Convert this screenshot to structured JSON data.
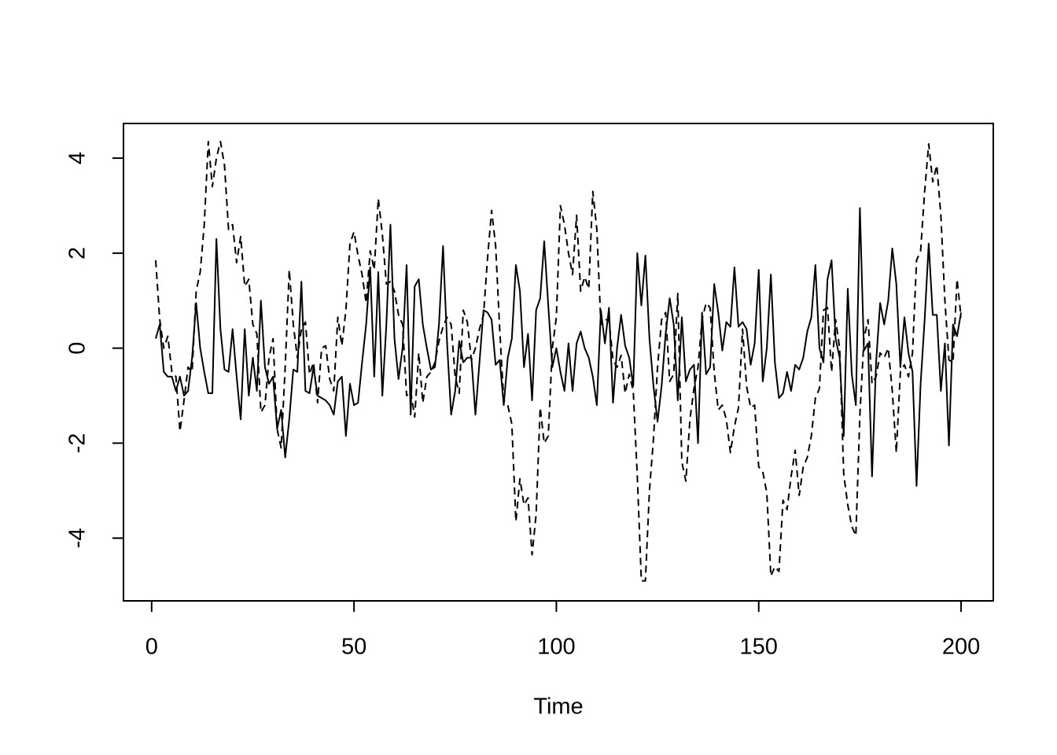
{
  "chart_data": {
    "type": "line",
    "xlabel": "Time",
    "x": [
      1,
      2,
      3,
      4,
      5,
      6,
      7,
      8,
      9,
      10,
      11,
      12,
      13,
      14,
      15,
      16,
      17,
      18,
      19,
      20,
      21,
      22,
      23,
      24,
      25,
      26,
      27,
      28,
      29,
      30,
      31,
      32,
      33,
      34,
      35,
      36,
      37,
      38,
      39,
      40,
      41,
      42,
      43,
      44,
      45,
      46,
      47,
      48,
      49,
      50,
      51,
      52,
      53,
      54,
      55,
      56,
      57,
      58,
      59,
      60,
      61,
      62,
      63,
      64,
      65,
      66,
      67,
      68,
      69,
      70,
      71,
      72,
      73,
      74,
      75,
      76,
      77,
      78,
      79,
      80,
      81,
      82,
      83,
      84,
      85,
      86,
      87,
      88,
      89,
      90,
      91,
      92,
      93,
      94,
      95,
      96,
      97,
      98,
      99,
      100,
      101,
      102,
      103,
      104,
      105,
      106,
      107,
      108,
      109,
      110,
      111,
      112,
      113,
      114,
      115,
      116,
      117,
      118,
      119,
      120,
      121,
      122,
      123,
      124,
      125,
      126,
      127,
      128,
      129,
      130,
      131,
      132,
      133,
      134,
      135,
      136,
      137,
      138,
      139,
      140,
      141,
      142,
      143,
      144,
      145,
      146,
      147,
      148,
      149,
      150,
      151,
      152,
      153,
      154,
      155,
      156,
      157,
      158,
      159,
      160,
      161,
      162,
      163,
      164,
      165,
      166,
      167,
      168,
      169,
      170,
      171,
      172,
      173,
      174,
      175,
      176,
      177,
      178,
      179,
      180,
      181,
      182,
      183,
      184,
      185,
      186,
      187,
      188,
      189,
      190,
      191,
      192,
      193,
      194,
      195,
      196,
      197,
      198,
      199,
      200
    ],
    "series": [
      {
        "color": "#000000",
        "line_style": "solid",
        "values": [
          0.2,
          0.5,
          -0.5,
          -0.6,
          -0.6,
          -0.9,
          -0.6,
          -1.0,
          -0.9,
          -0.2,
          0.95,
          0.0,
          -0.5,
          -0.95,
          -0.95,
          2.3,
          0.4,
          -0.45,
          -0.5,
          0.4,
          -0.6,
          -1.5,
          0.4,
          -1.0,
          -0.2,
          -0.9,
          1.0,
          -0.4,
          -0.75,
          -0.6,
          -1.7,
          -1.3,
          -2.3,
          -1.5,
          -0.45,
          -0.5,
          1.4,
          -0.9,
          -0.95,
          -0.4,
          -1.0,
          -1.05,
          -1.1,
          -1.2,
          -1.4,
          -0.7,
          -0.6,
          -1.85,
          -0.75,
          -1.2,
          -1.15,
          -0.3,
          0.5,
          1.7,
          -0.6,
          1.6,
          -1.0,
          0.5,
          2.6,
          0.2,
          -0.65,
          0.0,
          1.75,
          -1.4,
          1.3,
          1.45,
          0.5,
          0.0,
          -0.45,
          -0.4,
          0.5,
          2.15,
          0.1,
          -1.4,
          -0.9,
          0.15,
          -0.3,
          -0.2,
          -0.2,
          -1.4,
          -0.3,
          0.8,
          0.75,
          0.6,
          -0.35,
          -0.25,
          -1.2,
          -0.2,
          0.2,
          1.75,
          1.2,
          -0.4,
          0.3,
          -1.1,
          0.8,
          1.05,
          2.25,
          0.9,
          -0.4,
          0.0,
          -0.5,
          -0.9,
          0.1,
          -0.9,
          0.1,
          0.35,
          0.0,
          -0.2,
          -0.6,
          -1.2,
          0.8,
          0.1,
          0.85,
          -1.15,
          0.0,
          0.7,
          0.05,
          -0.2,
          -0.8,
          2.0,
          0.9,
          1.95,
          0.2,
          -0.8,
          -1.55,
          -0.8,
          0.3,
          1.05,
          0.5,
          -1.1,
          0.65,
          -0.7,
          -0.45,
          -0.35,
          -2.0,
          0.75,
          -0.55,
          -0.4,
          1.35,
          0.75,
          -0.05,
          0.55,
          0.45,
          1.7,
          0.45,
          0.55,
          0.4,
          -0.35,
          0.1,
          1.65,
          -0.7,
          0.0,
          1.55,
          -0.3,
          -1.05,
          -0.95,
          -0.5,
          -0.9,
          -0.35,
          -0.45,
          -0.2,
          0.35,
          0.65,
          1.75,
          0.0,
          -0.3,
          1.45,
          1.85,
          0.2,
          -0.2,
          -1.85,
          1.25,
          -0.55,
          -1.2,
          2.95,
          -0.05,
          0.1,
          -2.7,
          -0.3,
          0.95,
          0.5,
          1.0,
          2.1,
          1.35,
          -0.4,
          0.65,
          -0.1,
          -0.5,
          -2.9,
          -0.75,
          0.6,
          2.2,
          0.7,
          0.7,
          -0.9,
          0.1,
          -2.05,
          0.5,
          0.25,
          0.75
        ]
      },
      {
        "color": "#000000",
        "line_style": "dashed",
        "values": [
          1.85,
          0.6,
          0.0,
          0.25,
          -0.5,
          -0.6,
          -1.75,
          -1.1,
          -0.4,
          -0.5,
          1.2,
          1.6,
          2.6,
          4.35,
          3.4,
          4.0,
          4.35,
          3.85,
          2.5,
          2.6,
          1.8,
          2.35,
          1.3,
          1.45,
          0.5,
          0.3,
          -1.35,
          -1.2,
          -0.2,
          0.2,
          -1.7,
          -2.1,
          -0.4,
          1.65,
          0.5,
          -0.2,
          0.4,
          0.55,
          -0.55,
          -0.3,
          -1.15,
          0.0,
          0.05,
          -0.65,
          -0.9,
          0.65,
          0.05,
          0.8,
          2.2,
          2.45,
          1.95,
          1.55,
          0.95,
          2.05,
          1.65,
          3.15,
          2.4,
          1.35,
          1.4,
          1.2,
          0.7,
          0.5,
          -1.0,
          -0.9,
          -1.45,
          -0.1,
          -1.15,
          -0.6,
          -0.5,
          -0.3,
          0.15,
          0.45,
          0.65,
          0.5,
          -0.6,
          -0.95,
          0.8,
          0.55,
          -0.25,
          0.0,
          0.4,
          0.7,
          1.9,
          2.9,
          2.15,
          0.4,
          -1.1,
          -1.2,
          -1.6,
          -3.65,
          -2.75,
          -3.3,
          -3.15,
          -4.35,
          -3.5,
          -1.25,
          -2.0,
          -1.85,
          0.0,
          0.65,
          3.0,
          2.6,
          2.0,
          1.55,
          2.8,
          1.2,
          1.5,
          1.25,
          3.3,
          2.5,
          0.5,
          0.6,
          0.6,
          -0.25,
          -0.4,
          -0.15,
          -0.95,
          -0.55,
          -0.9,
          -2.7,
          -4.9,
          -4.9,
          -3.0,
          -1.9,
          -0.4,
          0.6,
          0.75,
          -0.7,
          -0.55,
          1.15,
          -2.4,
          -2.8,
          -1.5,
          -0.85,
          -0.4,
          0.6,
          0.95,
          0.85,
          -0.5,
          -1.3,
          -1.2,
          -1.5,
          -2.2,
          -1.65,
          -1.25,
          0.4,
          -0.8,
          -1.25,
          -1.2,
          -2.5,
          -2.6,
          -3.05,
          -4.8,
          -4.6,
          -4.7,
          -3.2,
          -3.4,
          -2.7,
          -2.15,
          -3.1,
          -2.5,
          -2.3,
          -1.85,
          -1.05,
          -0.85,
          0.8,
          0.85,
          -0.5,
          0.6,
          0.0,
          -2.65,
          -3.3,
          -3.75,
          -3.95,
          -1.4,
          0.2,
          0.6,
          -0.75,
          -0.6,
          -0.1,
          -0.2,
          0.0,
          -0.9,
          -2.2,
          -0.5,
          -0.35,
          -0.6,
          -0.1,
          1.85,
          2.05,
          3.3,
          4.3,
          3.5,
          3.85,
          2.8,
          1.0,
          -0.25,
          -0.3,
          1.45,
          0.65
        ]
      }
    ],
    "xlim": [
      -6.96,
      207.96
    ],
    "xticks": [
      0,
      50,
      100,
      150,
      200
    ],
    "ylim": [
      -5.32,
      4.73
    ],
    "yticks": [
      -4,
      -2,
      0,
      2,
      4
    ]
  }
}
